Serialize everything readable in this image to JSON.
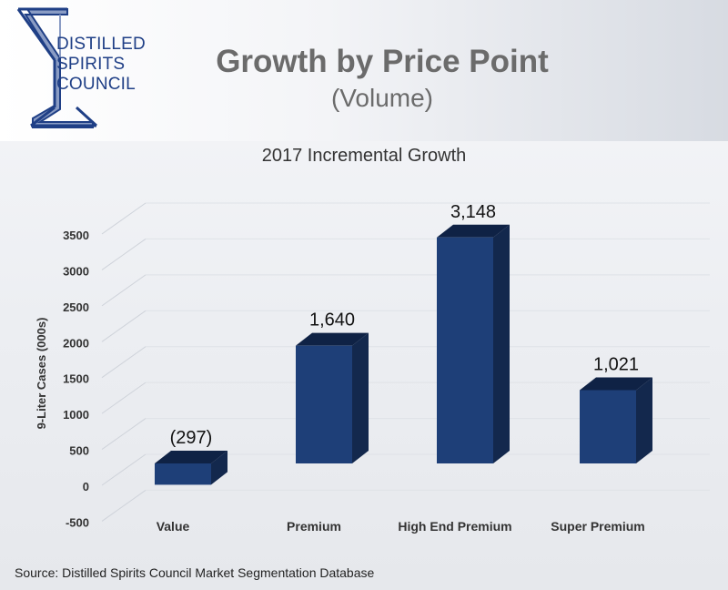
{
  "logo": {
    "lines": [
      "DISTILLED",
      "SPIRITS",
      "COUNCIL"
    ]
  },
  "header": {
    "title": "Growth by Price Point",
    "subtitle": "(Volume)"
  },
  "colors": {
    "bar_front": "#1e3f78",
    "bar_side": "#13284d",
    "bar_top": "#0f2245",
    "logo_blue": "#1f3f86"
  },
  "chart_data": {
    "type": "bar",
    "title": "2017 Incremental Growth",
    "ylabel": "9-Liter Cases (000s)",
    "xlabel": "",
    "categories": [
      "Value",
      "Premium",
      "High End Premium",
      "Super Premium"
    ],
    "values": [
      -297,
      1640,
      3148,
      1021
    ],
    "data_labels": [
      "(297)",
      "1,640",
      "3,148",
      "1,021"
    ],
    "yticks": [
      "-500",
      "0",
      "500",
      "1000",
      "1500",
      "2000",
      "2500",
      "3000",
      "3500"
    ],
    "ylim": [
      -500,
      3500
    ],
    "grid": true,
    "legend": "none"
  },
  "source": "Source: Distilled Spirits Council Market Segmentation Database"
}
